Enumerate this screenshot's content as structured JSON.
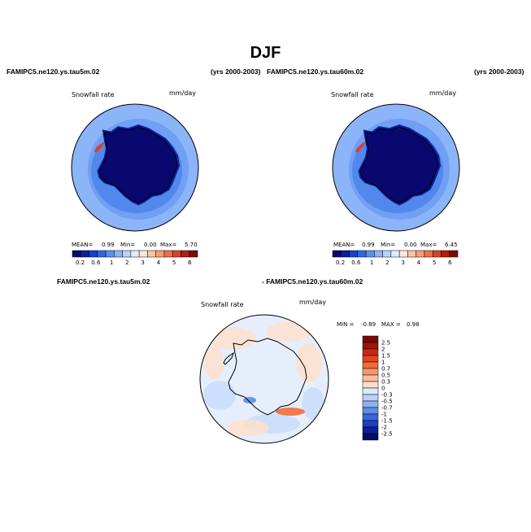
{
  "season_title": "DJF",
  "panels": {
    "left": {
      "case": "FAMIPC5.ne120.ys.tau5m.02",
      "years": "(yrs 2000-2003)",
      "field": "Snowfall rate",
      "units": "mm/day",
      "stats": {
        "mean_label": "MEAN=",
        "mean": "0.99",
        "min_label": "Min=",
        "min": "0.00",
        "max_label": "Max=",
        "max": "5.70"
      }
    },
    "right": {
      "case": "FAMIPC5.ne120.ys.tau60m.02",
      "years": "(yrs 2000-2003)",
      "field": "Snowfall rate",
      "units": "mm/day",
      "stats": {
        "mean_label": "MEAN=",
        "mean": "0.99",
        "min_label": "Min=",
        "min": "0.00",
        "max_label": "Max=",
        "max": "6.45"
      }
    },
    "difference": {
      "case_a": "FAMIPC5.ne120.ys.tau5m.02",
      "case_b": "- FAMIPC5.ne120.ys.tau60m.02",
      "field": "Snowfall rate",
      "units": "mm/day",
      "stats": {
        "min_label": "MIN =",
        "min": "-0.89",
        "max_label": "MAX =",
        "max": "0.98"
      }
    }
  },
  "colorbars": {
    "absolute": {
      "tick_labels": [
        "0.2",
        "0.6",
        "1",
        "2",
        "3",
        "4",
        "5",
        "6"
      ],
      "colors": [
        "#08086e",
        "#0a1ea0",
        "#1840c8",
        "#2e68e0",
        "#5a90f0",
        "#8cb4f8",
        "#b8d2fa",
        "#e0ecfd",
        "#fde6d8",
        "#fcc4a4",
        "#f89c74",
        "#ef6e48",
        "#d84228",
        "#b01e10",
        "#7a0c04"
      ]
    },
    "difference": {
      "tick_labels": [
        "2.5",
        "2",
        "1.5",
        "1",
        "0.7",
        "0.5",
        "0.3",
        "0",
        "-0.3",
        "-0.5",
        "-0.7",
        "-1",
        "-1.5",
        "-2",
        "-2.5"
      ],
      "colors": [
        "#7a0a0a",
        "#a01408",
        "#c82a0e",
        "#e6461c",
        "#f26c3a",
        "#f8966a",
        "#fbbd9c",
        "#fde0cc",
        "#dceafb",
        "#b8d2f8",
        "#8cb2f2",
        "#5e8ee8",
        "#3866dc",
        "#1c40c0",
        "#0c1e9a",
        "#060a6a"
      ]
    }
  },
  "map_colors": {
    "ocean_high": "#8cb4f8",
    "ocean_mid": "#5a90f0",
    "ocean_low": "#2e68e0",
    "interior": "#08086e",
    "interior_edge": "#0a1ea0",
    "peninsula_high": "#d84228",
    "diff_neutral": "#e6eefc",
    "diff_pos": "#fde0cc",
    "diff_neg": "#c8dcfa",
    "diff_strong_pos": "#f26c3a",
    "diff_strong_neg": "#5e8ee8"
  }
}
